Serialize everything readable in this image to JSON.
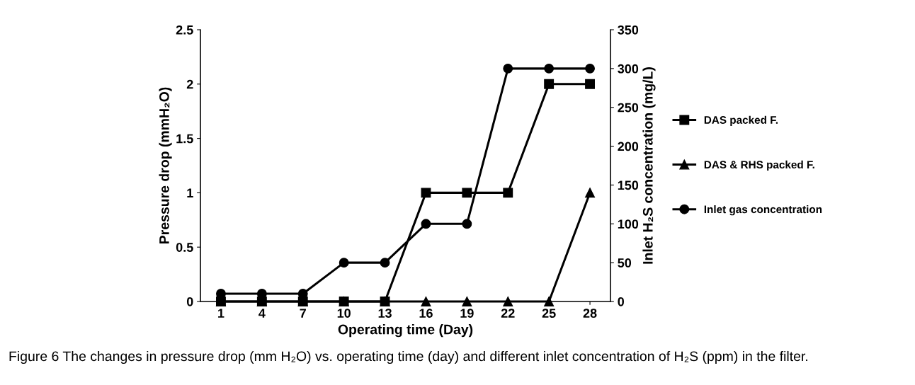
{
  "chart_data": {
    "type": "line",
    "xlabel": "Operating time (Day)",
    "ylabel": "Pressure drop (mmH₂O)",
    "y2label": "Inlet H₂S concentration (mg/L)",
    "categories": [
      "1",
      "4",
      "7",
      "10",
      "13",
      "16",
      "19",
      "22",
      "25",
      "28"
    ],
    "series": [
      {
        "name": "DAS packed F.",
        "color": "#000000",
        "marker": "square",
        "values": [
          0,
          0,
          0,
          0,
          0,
          1,
          1,
          1,
          2,
          2
        ]
      },
      {
        "name": "DAS & RHS packed F.",
        "color": "#000000",
        "marker": "triangle",
        "values": [
          0,
          0,
          0,
          0,
          0,
          0,
          0,
          0,
          0,
          1
        ]
      },
      {
        "name": "Inlet gas concentration",
        "color": "#000000",
        "marker": "circle",
        "axis": "y2",
        "values": [
          10,
          10,
          10,
          50,
          50,
          100,
          100,
          300,
          300,
          300
        ]
      }
    ],
    "ylim": [
      0,
      2.5
    ],
    "yticks": [
      0,
      0.5,
      1,
      1.5,
      2,
      2.5
    ],
    "y2lim": [
      0,
      350
    ],
    "y2ticks": [
      0,
      50,
      100,
      150,
      200,
      250,
      300,
      350
    ],
    "grid": false,
    "legend": "right",
    "line_style": "solid",
    "annotations": [
      "Figure 6 The changes in pressure drop (mm H₂O) vs. operating time (day) and different inlet concentration of H₂S (ppm) in the filter."
    ]
  }
}
